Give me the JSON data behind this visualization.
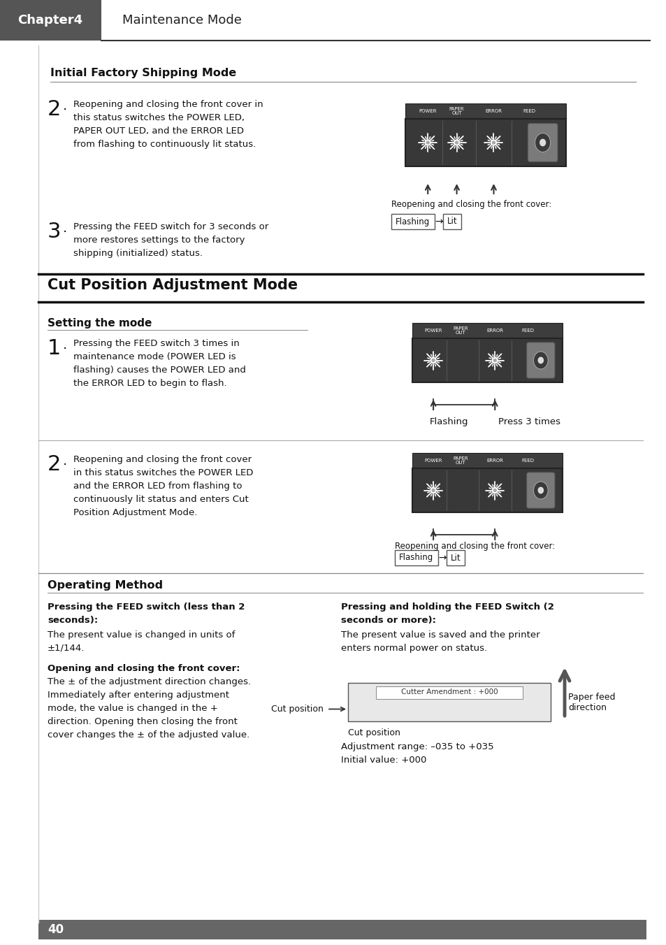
{
  "title_box_color": "#555555",
  "title_box_text": "Chapter4",
  "title_box_text_color": "#ffffff",
  "header_text": "Maintenance Mode",
  "background_color": "#ffffff",
  "section1_title": "Initial Factory Shipping Mode",
  "section2_title": "Cut Position Adjustment Mode",
  "setting_mode_title": "Setting the mode",
  "operating_method_title": "Operating Method",
  "reopen_label": "Reopening and closing the front cover:",
  "flashing_label": "Flashing",
  "press3_label": "Press 3 times",
  "cut_position_label": "Cut position",
  "paper_feed_label": "Paper feed\ndirection",
  "cutter_amendment": "Cutter Amendment : +000",
  "adj_range": "Adjustment range: –035 to +035",
  "init_val": "Initial value: +000",
  "page_number": "40"
}
